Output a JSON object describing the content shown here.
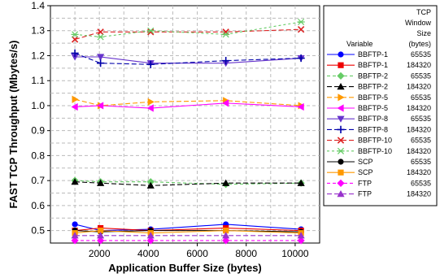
{
  "chart_data": {
    "type": "line",
    "xlabel": "Application Buffer Size (bytes)",
    "ylabel": "FAST TCP Throughput (Mbytes/s)",
    "xlim": [
      0,
      11000
    ],
    "ylim": [
      0.45,
      1.4
    ],
    "xticks": [
      "2000",
      "4000",
      "6000",
      "8000",
      "10000"
    ],
    "yticks": [
      "0.5",
      "0.6",
      "0.7",
      "0.8",
      "0.9",
      "1.0",
      "1.1",
      "1.2",
      "1.3",
      "1.4"
    ],
    "grid": true,
    "legend": {
      "placement": "right",
      "header_variable": "Variable",
      "header_window": [
        "TCP",
        "Window",
        "Size",
        "(bytes)"
      ]
    },
    "x": [
      1000,
      2048,
      4096,
      7168,
      10240
    ],
    "series": [
      {
        "name": "BBFTP-1",
        "window": "65535",
        "color": "#0000ff",
        "marker": "circle",
        "dash": "",
        "values": [
          0.525,
          0.5,
          0.505,
          0.525,
          0.505
        ]
      },
      {
        "name": "BBFTP-1",
        "window": "184320",
        "color": "#ee0000",
        "marker": "square",
        "dash": "",
        "values": [
          0.5,
          0.51,
          0.5,
          0.51,
          0.5
        ]
      },
      {
        "name": "BBFTP-2",
        "window": "65535",
        "color": "#66cc66",
        "marker": "diamond",
        "dash": "4,3",
        "values": [
          0.7,
          0.695,
          0.695,
          0.685,
          0.69
        ]
      },
      {
        "name": "BBFTP-2",
        "window": "184320",
        "color": "#000000",
        "marker": "triangle-up",
        "dash": "6,3",
        "values": [
          0.695,
          0.69,
          0.68,
          0.69,
          0.69
        ]
      },
      {
        "name": "BBFTP-5",
        "window": "65535",
        "color": "#ff9900",
        "marker": "triangle-right",
        "dash": "6,3",
        "values": [
          1.025,
          1.0,
          1.015,
          1.02,
          1.0
        ]
      },
      {
        "name": "BBFTP-5",
        "window": "184320",
        "color": "#ff00ff",
        "marker": "triangle-left",
        "dash": "",
        "values": [
          0.995,
          1.0,
          0.99,
          1.01,
          0.995
        ]
      },
      {
        "name": "BBFTP-8",
        "window": "65535",
        "color": "#6633cc",
        "marker": "triangle-down",
        "dash": "",
        "values": [
          1.195,
          1.195,
          1.17,
          1.17,
          1.19
        ]
      },
      {
        "name": "BBFTP-8",
        "window": "184320",
        "color": "#0000aa",
        "marker": "plus",
        "dash": "6,3",
        "values": [
          1.21,
          1.17,
          1.165,
          1.18,
          1.19
        ]
      },
      {
        "name": "BBFTP-10",
        "window": "65535",
        "color": "#dd2222",
        "marker": "x",
        "dash": "6,3",
        "values": [
          1.265,
          1.295,
          1.295,
          1.295,
          1.305
        ]
      },
      {
        "name": "BBFTP-10",
        "window": "184320",
        "color": "#66cc66",
        "marker": "asterisk",
        "dash": "3,3",
        "values": [
          1.285,
          1.275,
          1.3,
          1.285,
          1.335
        ]
      },
      {
        "name": "SCP",
        "window": "65535",
        "color": "#000000",
        "marker": "circle",
        "dash": "",
        "values": [
          0.5,
          0.495,
          0.5,
          0.5,
          0.495
        ]
      },
      {
        "name": "SCP",
        "window": "184320",
        "color": "#ff9900",
        "marker": "square",
        "dash": "",
        "values": [
          0.49,
          0.5,
          0.49,
          0.5,
          0.49
        ]
      },
      {
        "name": "FTP",
        "window": "65535",
        "color": "#ff00ff",
        "marker": "diamond",
        "dash": "4,3",
        "values": [
          0.46,
          0.46,
          0.46,
          0.46,
          0.46
        ]
      },
      {
        "name": "FTP",
        "window": "184320",
        "color": "#9933cc",
        "marker": "triangle-up",
        "dash": "6,3",
        "values": [
          0.48,
          0.48,
          0.48,
          0.48,
          0.48
        ]
      }
    ]
  }
}
